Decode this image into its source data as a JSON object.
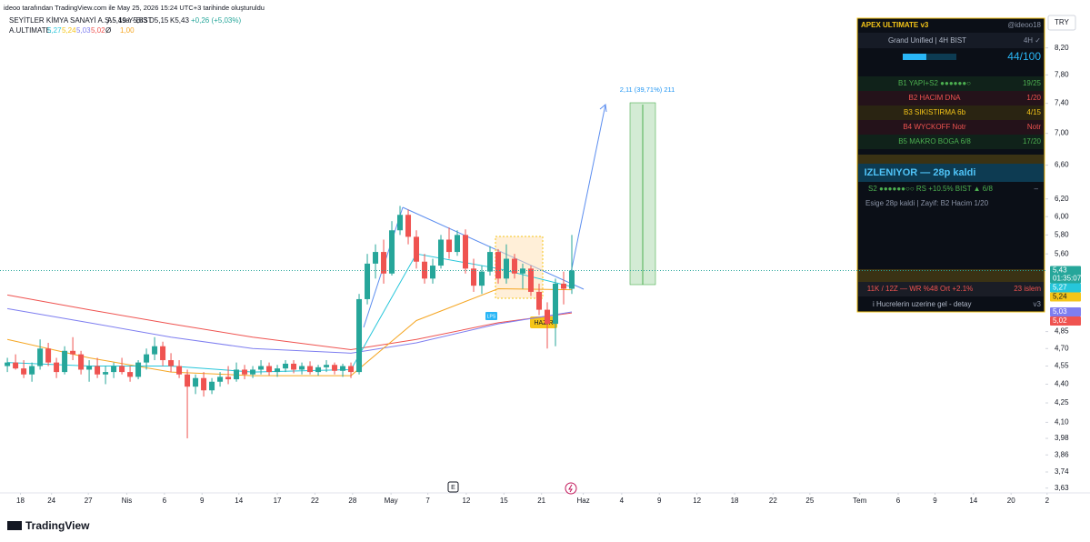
{
  "header": {
    "attribution": "ideoo tarafından TradingView.com ile May 25, 2026 15:24 UTC+3 tarihinde oluşturuldu",
    "symbol": "SEYİTLER KİMYA SANAYİ A.Ş. · 4sa · BIST",
    "ohlc": [
      "A5,19",
      "Y5,83",
      "D5,15",
      "K5,43",
      "+0,26 (+5,03%)"
    ],
    "indicator": "A.ULTIMATE",
    "indicator_values": [
      "5,27",
      "5,24",
      "5,03",
      "5,02",
      "Ø",
      "1,00"
    ]
  },
  "currency": "TRY",
  "chart_data": {
    "type": "candlestick",
    "log_scale": true,
    "ylim": [
      3.61,
      8.96
    ],
    "xlim": [
      -0.9,
      126.9
    ],
    "up_color": "#26a69a",
    "down_color": "#ef5350",
    "candles": [
      [
        4.55,
        4.62,
        4.5,
        4.58
      ],
      [
        4.58,
        4.65,
        4.52,
        4.53
      ],
      [
        4.53,
        4.6,
        4.45,
        4.48
      ],
      [
        4.48,
        4.58,
        4.42,
        4.55
      ],
      [
        4.55,
        4.78,
        4.52,
        4.7
      ],
      [
        4.7,
        4.75,
        4.55,
        4.58
      ],
      [
        4.58,
        4.62,
        4.45,
        4.5
      ],
      [
        4.5,
        4.72,
        4.48,
        4.68
      ],
      [
        4.68,
        4.8,
        4.6,
        4.65
      ],
      [
        4.65,
        4.68,
        4.48,
        4.52
      ],
      [
        4.52,
        4.6,
        4.42,
        4.55
      ],
      [
        4.55,
        4.62,
        4.45,
        4.48
      ],
      [
        4.48,
        4.55,
        4.4,
        4.5
      ],
      [
        4.5,
        4.58,
        4.45,
        4.55
      ],
      [
        4.55,
        4.62,
        4.48,
        4.5
      ],
      [
        4.5,
        4.55,
        4.42,
        4.46
      ],
      [
        4.46,
        4.6,
        4.44,
        4.58
      ],
      [
        4.58,
        4.7,
        4.52,
        4.65
      ],
      [
        4.65,
        4.8,
        4.6,
        4.72
      ],
      [
        4.72,
        4.76,
        4.55,
        4.6
      ],
      [
        4.6,
        4.66,
        4.5,
        4.55
      ],
      [
        4.55,
        4.6,
        4.45,
        4.48
      ],
      [
        4.48,
        4.52,
        3.98,
        4.38
      ],
      [
        4.38,
        4.48,
        4.32,
        4.45
      ],
      [
        4.45,
        4.5,
        4.3,
        4.35
      ],
      [
        4.35,
        4.45,
        4.32,
        4.42
      ],
      [
        4.42,
        4.5,
        4.38,
        4.46
      ],
      [
        4.46,
        4.55,
        4.4,
        4.44
      ],
      [
        4.44,
        4.58,
        4.42,
        4.52
      ],
      [
        4.52,
        4.56,
        4.44,
        4.48
      ],
      [
        4.48,
        4.55,
        4.45,
        4.52
      ],
      [
        4.52,
        4.6,
        4.48,
        4.55
      ],
      [
        4.55,
        4.58,
        4.47,
        4.5
      ],
      [
        4.5,
        4.56,
        4.46,
        4.53
      ],
      [
        4.53,
        4.6,
        4.5,
        4.57
      ],
      [
        4.57,
        4.6,
        4.49,
        4.52
      ],
      [
        4.52,
        4.58,
        4.48,
        4.55
      ],
      [
        4.55,
        4.59,
        4.48,
        4.5
      ],
      [
        4.5,
        4.56,
        4.47,
        4.54
      ],
      [
        4.54,
        4.6,
        4.5,
        4.56
      ],
      [
        4.56,
        4.58,
        4.48,
        4.51
      ],
      [
        4.51,
        4.57,
        4.46,
        4.55
      ],
      [
        4.55,
        4.58,
        4.45,
        4.5
      ],
      [
        4.5,
        5.2,
        4.48,
        5.15
      ],
      [
        5.15,
        5.6,
        5.1,
        5.5
      ],
      [
        5.5,
        5.7,
        5.35,
        5.62
      ],
      [
        5.62,
        5.75,
        5.3,
        5.4
      ],
      [
        5.4,
        5.95,
        5.38,
        5.85
      ],
      [
        5.85,
        6.12,
        5.8,
        6.02
      ],
      [
        6.02,
        6.08,
        5.7,
        5.78
      ],
      [
        5.78,
        5.85,
        5.45,
        5.52
      ],
      [
        5.52,
        5.6,
        5.3,
        5.35
      ],
      [
        5.35,
        5.55,
        5.3,
        5.48
      ],
      [
        5.48,
        5.8,
        5.45,
        5.75
      ],
      [
        5.75,
        5.88,
        5.55,
        5.62
      ],
      [
        5.62,
        5.85,
        5.58,
        5.8
      ],
      [
        5.8,
        5.86,
        5.4,
        5.45
      ],
      [
        5.45,
        5.55,
        5.22,
        5.28
      ],
      [
        5.28,
        5.48,
        5.2,
        5.42
      ],
      [
        5.42,
        5.68,
        5.38,
        5.62
      ],
      [
        5.62,
        5.65,
        5.3,
        5.35
      ],
      [
        5.35,
        5.7,
        5.3,
        5.55
      ],
      [
        5.55,
        5.6,
        5.35,
        5.4
      ],
      [
        5.4,
        5.5,
        5.25,
        5.45
      ],
      [
        5.45,
        5.48,
        5.18,
        5.22
      ],
      [
        5.22,
        5.3,
        5.0,
        5.05
      ],
      [
        5.05,
        5.12,
        4.7,
        4.92
      ],
      [
        4.92,
        5.35,
        4.72,
        5.3
      ],
      [
        5.3,
        5.42,
        5.1,
        5.25
      ],
      [
        5.25,
        5.8,
        5.2,
        5.43
      ]
    ],
    "lines": [
      {
        "color": "#ef5350",
        "x": [
          0,
          10,
          20,
          30,
          42,
          50,
          60,
          69
        ],
        "values": [
          5.19,
          5.05,
          4.92,
          4.8,
          4.69,
          4.78,
          4.93,
          5.02
        ]
      },
      {
        "color": "#7e7ef0",
        "x": [
          0,
          10,
          20,
          30,
          42,
          50,
          60,
          69
        ],
        "values": [
          5.06,
          4.93,
          4.8,
          4.7,
          4.66,
          4.75,
          4.92,
          5.03
        ]
      },
      {
        "color": "#f5a623",
        "x": [
          0,
          10,
          20,
          30,
          42,
          50,
          60,
          69
        ],
        "values": [
          4.78,
          4.62,
          4.5,
          4.47,
          4.47,
          4.95,
          5.25,
          5.24
        ]
      },
      {
        "color": "#26c6da",
        "x": [
          0,
          10,
          20,
          30,
          42,
          50,
          60,
          69
        ],
        "values": [
          4.58,
          4.55,
          4.55,
          4.5,
          4.52,
          5.6,
          5.45,
          5.27
        ]
      }
    ],
    "yticks": [
      {
        "value": 8.2,
        "label": "8,20"
      },
      {
        "value": 7.8,
        "label": "7,80"
      },
      {
        "value": 7.4,
        "label": "7,40"
      },
      {
        "value": 7.0,
        "label": "7,00"
      },
      {
        "value": 6.6,
        "label": "6,60"
      },
      {
        "value": 6.2,
        "label": "6,20"
      },
      {
        "value": 6.0,
        "label": "6,00"
      },
      {
        "value": 5.8,
        "label": "5,80"
      },
      {
        "value": 5.6,
        "label": "5,60"
      },
      {
        "value": 4.85,
        "label": "4,85"
      },
      {
        "value": 4.7,
        "label": "4,70"
      },
      {
        "value": 4.55,
        "label": "4,55"
      },
      {
        "value": 4.4,
        "label": "4,40"
      },
      {
        "value": 4.25,
        "label": "4,25"
      },
      {
        "value": 4.1,
        "label": "4,10"
      },
      {
        "value": 3.98,
        "label": "3,98"
      },
      {
        "value": 3.86,
        "label": "3,86"
      },
      {
        "value": 3.74,
        "label": "3,74"
      },
      {
        "value": 3.63,
        "label": "3,63"
      }
    ],
    "xticks": [
      {
        "value": 1.6,
        "label": "18"
      },
      {
        "value": 5.4,
        "label": "24"
      },
      {
        "value": 9.9,
        "label": "27"
      },
      {
        "value": 14.6,
        "label": "Nis"
      },
      {
        "value": 19.2,
        "label": "6"
      },
      {
        "value": 23.8,
        "label": "9"
      },
      {
        "value": 28.3,
        "label": "14"
      },
      {
        "value": 33.0,
        "label": "17"
      },
      {
        "value": 37.6,
        "label": "22"
      },
      {
        "value": 42.2,
        "label": "28"
      },
      {
        "value": 46.9,
        "label": "May"
      },
      {
        "value": 51.4,
        "label": "7"
      },
      {
        "value": 56.1,
        "label": "12"
      },
      {
        "value": 60.7,
        "label": "15"
      },
      {
        "value": 65.3,
        "label": "21"
      },
      {
        "value": 70.4,
        "label": "Haz"
      },
      {
        "value": 75.1,
        "label": "4"
      },
      {
        "value": 79.7,
        "label": "9"
      },
      {
        "value": 84.3,
        "label": "12"
      },
      {
        "value": 88.9,
        "label": "18"
      },
      {
        "value": 93.6,
        "label": "22"
      },
      {
        "value": 98.1,
        "label": "25"
      },
      {
        "value": 104.2,
        "label": "Tem"
      },
      {
        "value": 108.9,
        "label": "6"
      },
      {
        "value": 113.4,
        "label": "9"
      },
      {
        "value": 118.1,
        "label": "14"
      },
      {
        "value": 122.7,
        "label": "20"
      },
      {
        "value": 127.1,
        "label": "2"
      }
    ],
    "price_labels": [
      {
        "value": 5.43,
        "label": "5,43",
        "color": "#26a69a"
      },
      {
        "value": 5.27,
        "label": "5,27",
        "color": "#26c6da"
      },
      {
        "value": 5.24,
        "label": "5,24",
        "color": "#f5c518"
      },
      {
        "value": 5.03,
        "label": "5,03",
        "color": "#7e7ef0"
      },
      {
        "value": 5.02,
        "label": "5,02",
        "color": "#ef5350"
      }
    ],
    "countdown": "01:35:07",
    "target_label": "2,11 (39,71%) 211",
    "markers": [
      "LPS",
      "HAZIR",
      "E"
    ]
  },
  "panel": {
    "title": "APEX ULTIMATE  v3",
    "handle": "@ideoo18",
    "mode": "Grand Unified  |  4H BIST",
    "tf": "4H ✓",
    "score": {
      "value": 44,
      "max": 100,
      "label": "44/100"
    },
    "rows": [
      {
        "label": "B1  YAPI+S2  ●●●●●●○",
        "value": "19/25",
        "color": "#4caf50"
      },
      {
        "label": "B2  HACIM DNA",
        "value": "1/20",
        "color": "#ef5350"
      },
      {
        "label": "B3  SIKISTIRMA  6b",
        "value": "4/15",
        "color": "#f5c518"
      },
      {
        "label": "B4  WYCKOFF   Notr",
        "value": "Notr",
        "color": "#ef5350"
      },
      {
        "label": "B5  MAKRO  BOGA  6/8",
        "value": "17/20",
        "color": "#4caf50"
      }
    ],
    "status": "IZLENIYOR  —  28p kaldi",
    "detail": "S2 ●●●●●●○○   RS +10.5%   BIST ▲ 6/8",
    "detail_right": "–",
    "note": "Esige 28p kaldi   |   Zayif: B2 Hacim 1/20",
    "stats": "11K / 12Z  —  WR %48  Ort +2.1%",
    "trades": "23 islem",
    "hint": "i  Hucrelerin uzerine gel - detay",
    "version": "v3"
  },
  "footer": {
    "brand": "TradingView"
  }
}
